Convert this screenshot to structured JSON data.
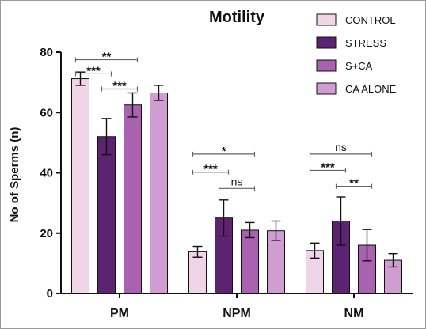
{
  "chart_data": {
    "type": "bar",
    "title": "Motility",
    "ylabel": "No of Sperms (n)",
    "xlabel": "",
    "ylim": [
      0,
      80
    ],
    "yticks": [
      0,
      20,
      40,
      60,
      80
    ],
    "categories": [
      "PM",
      "NPM",
      "NM"
    ],
    "legend_position": "top-right",
    "series": [
      {
        "name": "CONTROL",
        "color": "#f0d4e8",
        "values": [
          71.2,
          13.8,
          14.2
        ],
        "errors": [
          2.2,
          1.8,
          2.5
        ]
      },
      {
        "name": "STRESS",
        "color": "#5c2373",
        "values": [
          52.0,
          25.0,
          24.0
        ],
        "errors": [
          6.0,
          6.0,
          8.0
        ]
      },
      {
        "name": "S+CA",
        "color": "#a862b0",
        "values": [
          62.5,
          21.0,
          16.0
        ],
        "errors": [
          4.0,
          2.5,
          5.2
        ]
      },
      {
        "name": "CA ALONE",
        "color": "#cf9dd2",
        "values": [
          66.5,
          20.8,
          11.0
        ],
        "errors": [
          2.5,
          3.2,
          2.2
        ]
      }
    ],
    "annotations": [
      {
        "category": "PM",
        "from": 0,
        "to": 2,
        "y": 77.5,
        "label": "**"
      },
      {
        "category": "PM",
        "from": 0,
        "to": 1,
        "y": 72.8,
        "label": "***"
      },
      {
        "category": "PM",
        "from": 1,
        "to": 2,
        "y": 67.8,
        "label": "***"
      },
      {
        "category": "NPM",
        "from": 0,
        "to": 2,
        "y": 46.2,
        "label": "*"
      },
      {
        "category": "NPM",
        "from": 0,
        "to": 1,
        "y": 40.2,
        "label": "***"
      },
      {
        "category": "NPM",
        "from": 1,
        "to": 2,
        "y": 34.8,
        "label": "ns"
      },
      {
        "category": "NM",
        "from": 0,
        "to": 2,
        "y": 46.2,
        "label": "ns"
      },
      {
        "category": "NM",
        "from": 0,
        "to": 1,
        "y": 40.8,
        "label": "***"
      },
      {
        "category": "NM",
        "from": 1,
        "to": 2,
        "y": 35.5,
        "label": "**"
      }
    ]
  }
}
